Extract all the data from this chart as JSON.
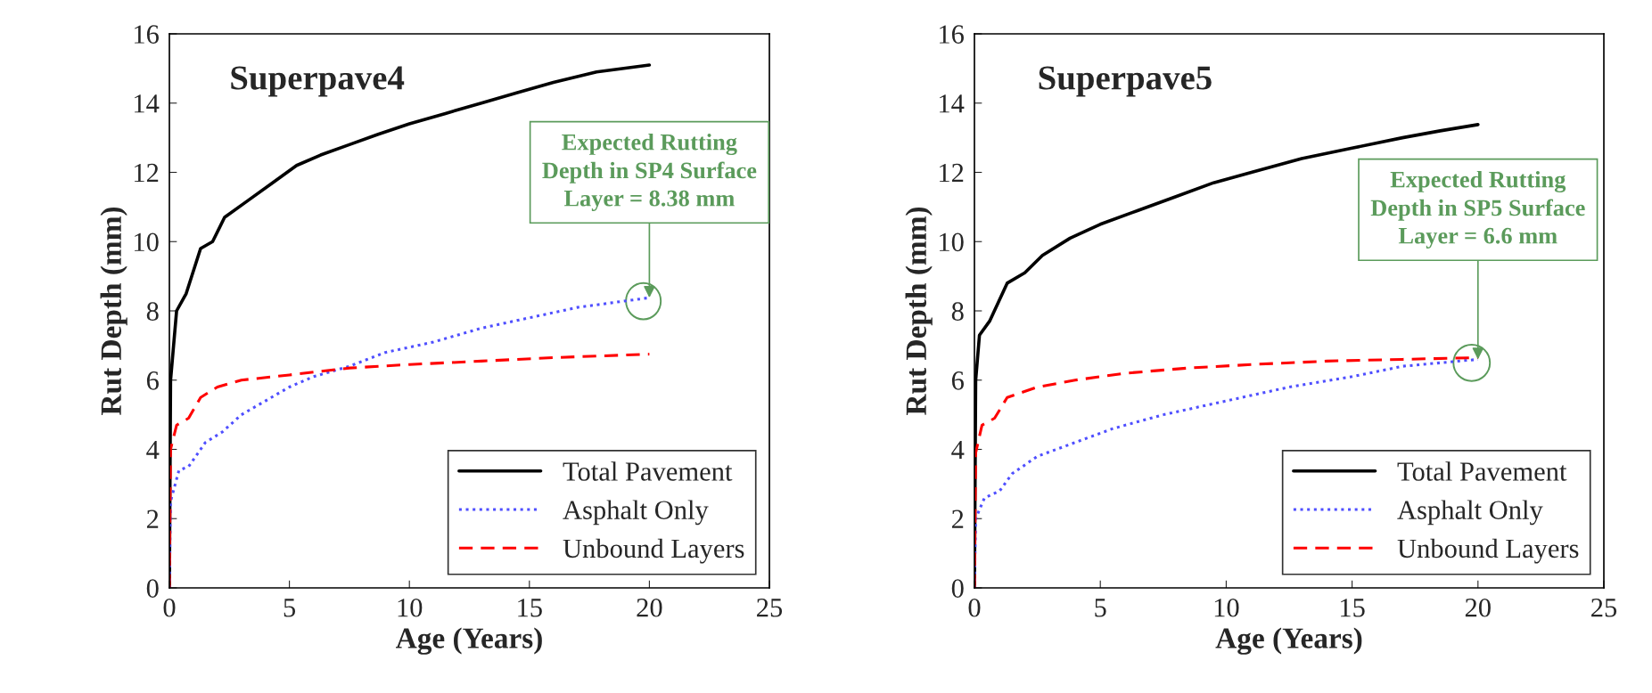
{
  "chart_data": [
    {
      "type": "line",
      "title": "Superpave4",
      "xlabel": "Age (Years)",
      "ylabel": "Rut Depth (mm)",
      "xlim": [
        0,
        25
      ],
      "xticks": [
        0,
        5,
        10,
        15,
        20,
        25
      ],
      "ylim": [
        0,
        16
      ],
      "yticks": [
        0,
        2,
        4,
        6,
        8,
        10,
        12,
        14,
        16
      ],
      "grid": false,
      "legend": "bottom right",
      "series": [
        {
          "name": "Total Pavement",
          "color": "#000000",
          "line_style": "solid",
          "x": [
            0,
            0.05,
            0.3,
            0.7,
            1.3,
            1.8,
            2.3,
            3.3,
            4.3,
            5.3,
            6.3,
            7.5,
            8.7,
            10,
            11.5,
            13,
            14.5,
            16,
            17.8,
            20
          ],
          "values": [
            0,
            6,
            8,
            8.5,
            9.8,
            10,
            10.7,
            11.2,
            11.7,
            12.2,
            12.5,
            12.8,
            13.1,
            13.4,
            13.7,
            14.0,
            14.3,
            14.6,
            14.9,
            15.1
          ]
        },
        {
          "name": "Asphalt Only",
          "color": "#4f4fff",
          "line_style": "dotted",
          "x": [
            0,
            0.05,
            0.4,
            0.8,
            1.5,
            2.2,
            3,
            4,
            5,
            6,
            7.5,
            9,
            11,
            13,
            15,
            17,
            20
          ],
          "values": [
            0,
            2.5,
            3.4,
            3.5,
            4.2,
            4.5,
            5.0,
            5.4,
            5.8,
            6.1,
            6.4,
            6.8,
            7.1,
            7.5,
            7.8,
            8.1,
            8.38
          ]
        },
        {
          "name": "Unbound Layers",
          "color": "#ff0000",
          "line_style": "dashed",
          "x": [
            0,
            0.05,
            0.3,
            0.8,
            1.3,
            2,
            3,
            5,
            7.5,
            10,
            13,
            16,
            20
          ],
          "values": [
            0,
            4.0,
            4.7,
            4.9,
            5.5,
            5.8,
            6.0,
            6.15,
            6.35,
            6.45,
            6.55,
            6.65,
            6.75
          ]
        }
      ],
      "annotations": [
        {
          "text": "Expected Rutting\nDepth in SP4 Surface\nLayer = 8.38 mm",
          "x": 20,
          "y": 8.38
        }
      ]
    },
    {
      "type": "line",
      "title": "Superpave5",
      "xlabel": "Age (Years)",
      "ylabel": "Rut Depth (mm)",
      "xlim": [
        0,
        25
      ],
      "xticks": [
        0,
        5,
        10,
        15,
        20,
        25
      ],
      "ylim": [
        0,
        16
      ],
      "yticks": [
        0,
        2,
        4,
        6,
        8,
        10,
        12,
        14,
        16
      ],
      "grid": false,
      "legend": "bottom right",
      "series": [
        {
          "name": "Total Pavement",
          "color": "#000000",
          "line_style": "solid",
          "x": [
            0,
            0.05,
            0.2,
            0.6,
            1.3,
            2,
            2.7,
            3.8,
            5,
            6.5,
            8,
            9.5,
            11,
            13,
            15,
            17,
            18.5,
            20
          ],
          "values": [
            0,
            6,
            7.3,
            7.7,
            8.8,
            9.1,
            9.6,
            10.1,
            10.5,
            10.9,
            11.3,
            11.7,
            12.0,
            12.4,
            12.7,
            13.0,
            13.2,
            13.38
          ]
        },
        {
          "name": "Asphalt Only",
          "color": "#4f4fff",
          "line_style": "dotted",
          "x": [
            0,
            0.05,
            0.4,
            1,
            1.5,
            2.5,
            4,
            5.5,
            7.5,
            10,
            12.5,
            15,
            17,
            20
          ],
          "values": [
            0,
            2.0,
            2.6,
            2.8,
            3.3,
            3.8,
            4.2,
            4.6,
            5.0,
            5.4,
            5.8,
            6.1,
            6.4,
            6.6
          ]
        },
        {
          "name": "Unbound Layers",
          "color": "#ff0000",
          "line_style": "dashed",
          "x": [
            0,
            0.05,
            0.3,
            0.8,
            1.3,
            2.5,
            4,
            6,
            8.5,
            11,
            14,
            17,
            20
          ],
          "values": [
            0,
            3.9,
            4.7,
            4.9,
            5.5,
            5.8,
            6.0,
            6.2,
            6.35,
            6.45,
            6.55,
            6.6,
            6.65
          ]
        }
      ],
      "annotations": [
        {
          "text": "Expected Rutting\nDepth in SP5 Surface\nLayer = 6.6 mm",
          "x": 20,
          "y": 6.6
        }
      ]
    }
  ]
}
